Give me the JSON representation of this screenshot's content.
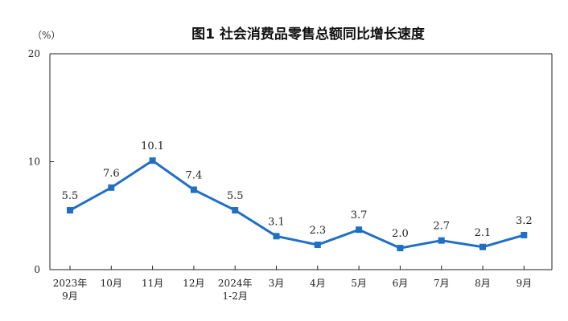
{
  "chart_data": {
    "type": "line",
    "title": "图1  社会消费品零售总额同比增长速度",
    "unit_label": "（%）",
    "ylim": [
      0,
      20
    ],
    "yticks": [
      0,
      10,
      20
    ],
    "grid": false,
    "categories": [
      [
        "2023年",
        "9月"
      ],
      [
        "10月"
      ],
      [
        "11月"
      ],
      [
        "12月"
      ],
      [
        "2024年",
        "1-2月"
      ],
      [
        "3月"
      ],
      [
        "4月"
      ],
      [
        "5月"
      ],
      [
        "6月"
      ],
      [
        "7月"
      ],
      [
        "8月"
      ],
      [
        "9月"
      ]
    ],
    "series": [
      {
        "values": [
          5.5,
          7.6,
          10.1,
          7.4,
          5.5,
          3.1,
          2.3,
          3.7,
          2.0,
          2.7,
          2.1,
          3.2
        ],
        "labels": [
          "5.5",
          "7.6",
          "10.1",
          "7.4",
          "5.5",
          "3.1",
          "2.3",
          "3.7",
          "2.0",
          "2.7",
          "2.1",
          "3.2"
        ],
        "color": "#1f6fc4"
      }
    ]
  }
}
